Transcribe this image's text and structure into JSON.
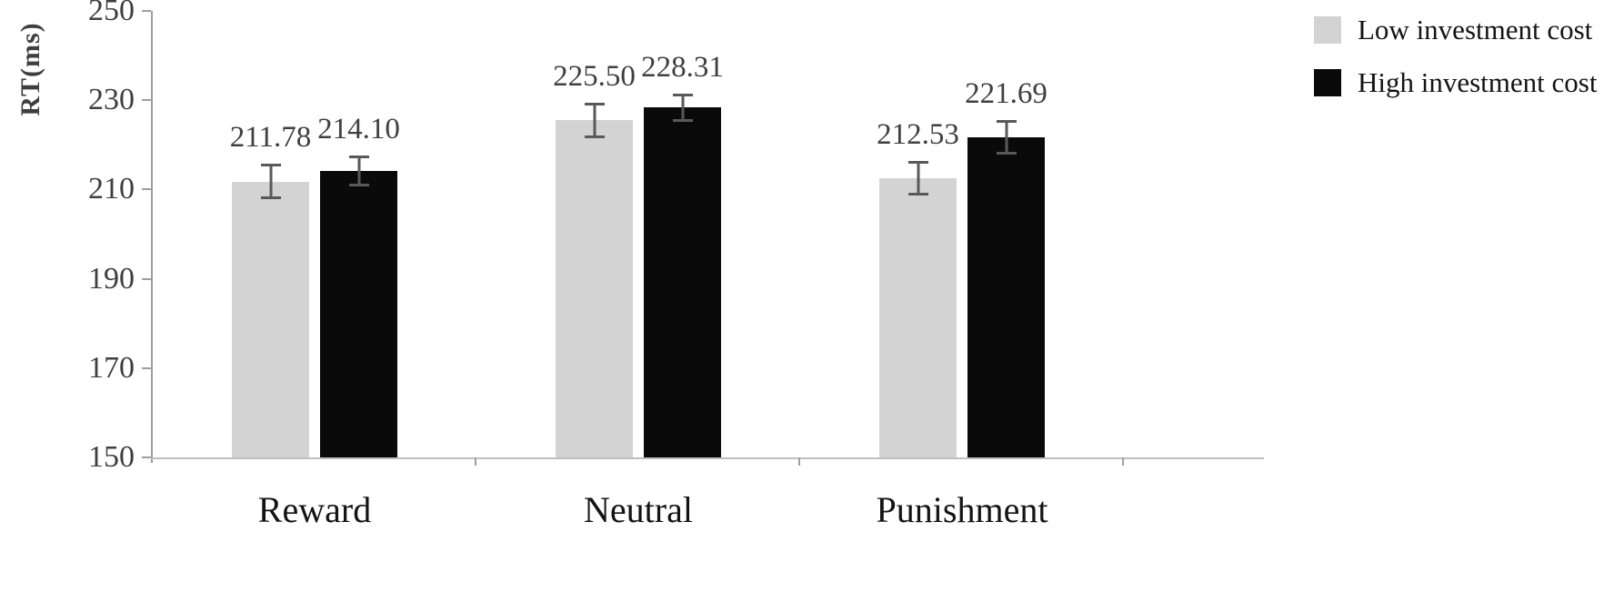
{
  "chart_data": {
    "type": "bar",
    "title": "",
    "xlabel": "",
    "ylabel": "RT(ms)",
    "categories": [
      "Reward",
      "Neutral",
      "Punishment"
    ],
    "series": [
      {
        "name": "Low investment cost",
        "color": "#d3d3d3",
        "values": [
          211.78,
          225.5,
          212.53
        ],
        "errors": [
          4.0,
          4.0,
          3.8
        ]
      },
      {
        "name": "High investment cost",
        "color": "#0a0a0a",
        "values": [
          214.1,
          228.31,
          221.69
        ],
        "errors": [
          3.5,
          3.2,
          3.8
        ]
      }
    ],
    "ylim": [
      150,
      250
    ],
    "yticks": [
      150,
      170,
      190,
      210,
      230,
      250
    ],
    "grid": false,
    "legend_position": "top-right",
    "error_bar_color": "#595959",
    "axis_color": "#9e9e9e",
    "baseline_color": "#bfbfbf",
    "value_label_decimals": 2
  }
}
